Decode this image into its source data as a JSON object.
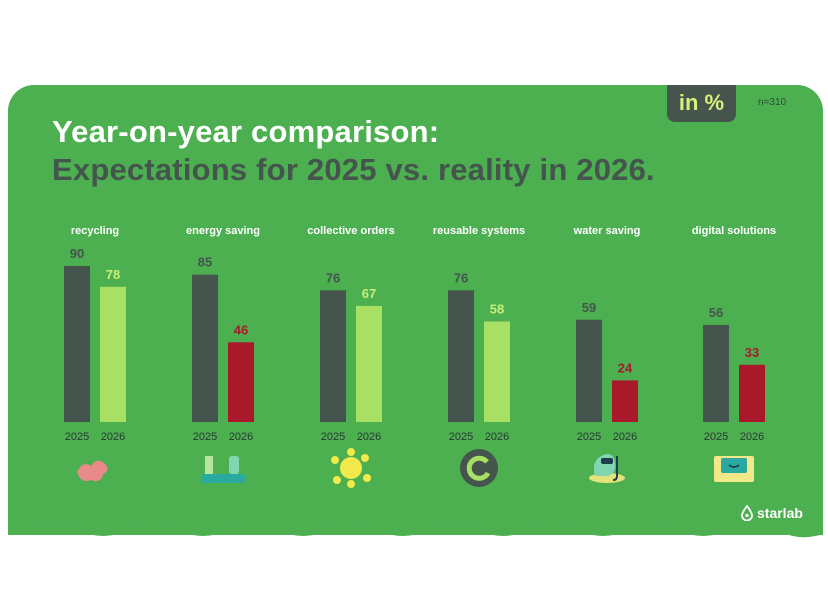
{
  "header": {
    "title_line1": "Year-on-year comparison:",
    "title_line2": "Expectations for 2025 vs. reality in 2026.",
    "unit_badge": "in %",
    "sample_size": "n=310"
  },
  "colors": {
    "background": "#4caf50",
    "bar_2025": "#45544d",
    "bar_2026_up": "#a8e063",
    "bar_2026_down": "#a8192b",
    "label_2025": "#45544d",
    "label_2026_up": "#c8ef7a",
    "label_2026_down": "#a8192b"
  },
  "chart_data": {
    "type": "bar",
    "title": "Year-on-year comparison: Expectations for 2025 vs. reality in 2026.",
    "ylabel": "in %",
    "ylim": [
      0,
      100
    ],
    "categories": [
      "recycling",
      "energy saving",
      "collective orders",
      "reusable systems",
      "water saving",
      "digital solutions"
    ],
    "series": [
      {
        "name": "2025",
        "values": [
          90,
          85,
          76,
          76,
          59,
          56
        ]
      },
      {
        "name": "2026",
        "values": [
          78,
          46,
          67,
          58,
          24,
          33
        ]
      }
    ],
    "series_2026_color_class": [
      "up",
      "down",
      "up",
      "up",
      "down",
      "down"
    ],
    "icons": [
      "recycling-icon",
      "energy-saving-icon",
      "collective-orders-icon",
      "reusable-systems-icon",
      "water-saving-icon",
      "digital-solutions-icon"
    ]
  },
  "footer": {
    "brand": "starlab"
  }
}
